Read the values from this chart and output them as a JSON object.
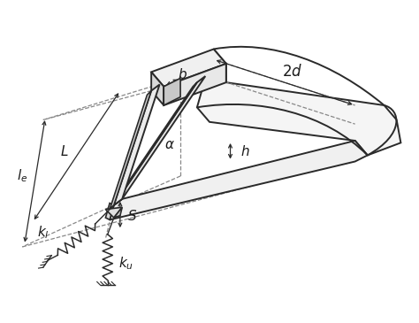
{
  "bg_color": "#ffffff",
  "line_color": "#2a2a2a",
  "dashed_color": "#555555",
  "label_color": "#1a1a1a",
  "figsize": [
    4.74,
    3.65
  ],
  "dpi": 100,
  "labels": {
    "le": "$l_e$",
    "L": "$L$",
    "b": "$b$",
    "two_d": "$2d$",
    "alpha": "$\\alpha$",
    "h": "$h$",
    "S": "$S$",
    "k1": "$k_l$",
    "k2": "$k_u$"
  }
}
